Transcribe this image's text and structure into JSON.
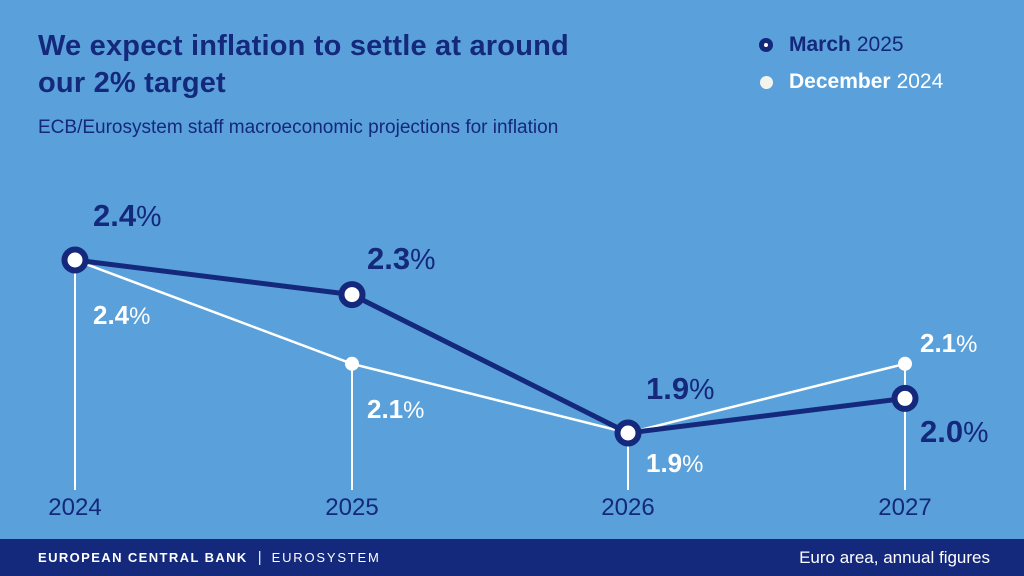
{
  "header": {
    "title_line1": "We expect inflation to settle at around",
    "title_line2": "our 2% target",
    "subtitle": "ECB/Eurosystem staff macroeconomic projections for inflation"
  },
  "legend": {
    "items": [
      {
        "label_bold": "March",
        "label_regular": "2025",
        "marker": "navy-ring"
      },
      {
        "label_bold": "December",
        "label_regular": "2024",
        "marker": "white-dot"
      }
    ]
  },
  "chart_data": {
    "type": "line",
    "title": "We expect inflation to settle at around our 2% target",
    "subtitle": "ECB/Eurosystem staff macroeconomic projections for inflation",
    "x": [
      "2024",
      "2025",
      "2026",
      "2027"
    ],
    "series": [
      {
        "name": "March 2025",
        "color": "#14287C",
        "marker": "ring",
        "values": [
          2.4,
          2.3,
          1.9,
          2.0
        ],
        "labels": [
          "2.4%",
          "2.3%",
          "1.9%",
          "2.0%"
        ]
      },
      {
        "name": "December 2024",
        "color": "#FFFFFF",
        "marker": "dot",
        "values": [
          2.4,
          2.1,
          1.9,
          2.1
        ],
        "labels": [
          "2.4%",
          "2.1%",
          "1.9%",
          "2.1%"
        ]
      }
    ],
    "unit": "%",
    "ylim": [
      1.8,
      2.6
    ],
    "grid": false,
    "guide_lines": "vertical-white-from-point-to-baseline",
    "legend_position": "top-right"
  },
  "footer": {
    "brand_primary": "EUROPEAN CENTRAL BANK",
    "brand_separator": "|",
    "brand_secondary": "EUROSYSTEM",
    "note": "Euro area, annual figures"
  },
  "colors": {
    "background": "#5AA1DB",
    "navy": "#14287C",
    "white": "#FFFFFF"
  }
}
